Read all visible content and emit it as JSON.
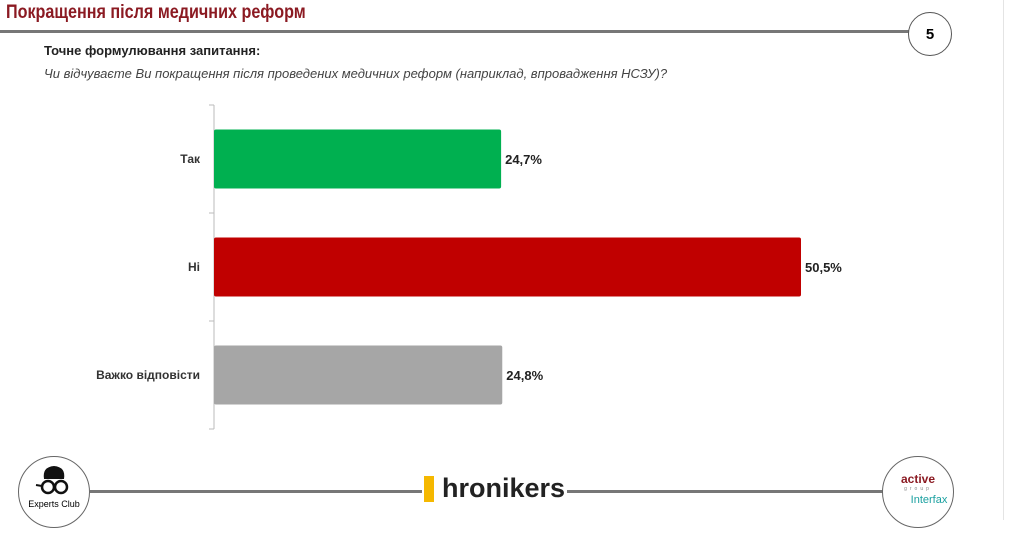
{
  "header": {
    "title": "Покращення після медичних реформ",
    "page_number": "5"
  },
  "question": {
    "label": "Точне формулювання запитання:",
    "text": "Чи відчуваєте Ви покращення після проведених медичних реформ (наприклад, впровадження НСЗУ)?"
  },
  "chart_data": {
    "type": "bar",
    "orientation": "horizontal",
    "categories": [
      "Так",
      "Ні",
      "Важко відповісти"
    ],
    "values": [
      24.7,
      50.5,
      24.8
    ],
    "data_labels": [
      "24,7%",
      "50,5%",
      "24,8%"
    ],
    "colors": [
      "#00b050",
      "#c00000",
      "#a6a6a6"
    ],
    "xlim": [
      0,
      52
    ],
    "grid": false
  },
  "footer": {
    "left_logo": "Experts Club",
    "center_logo": "hronikers",
    "right_logo_1": "active",
    "right_logo_2": "group",
    "right_logo_3": "Interfax"
  }
}
